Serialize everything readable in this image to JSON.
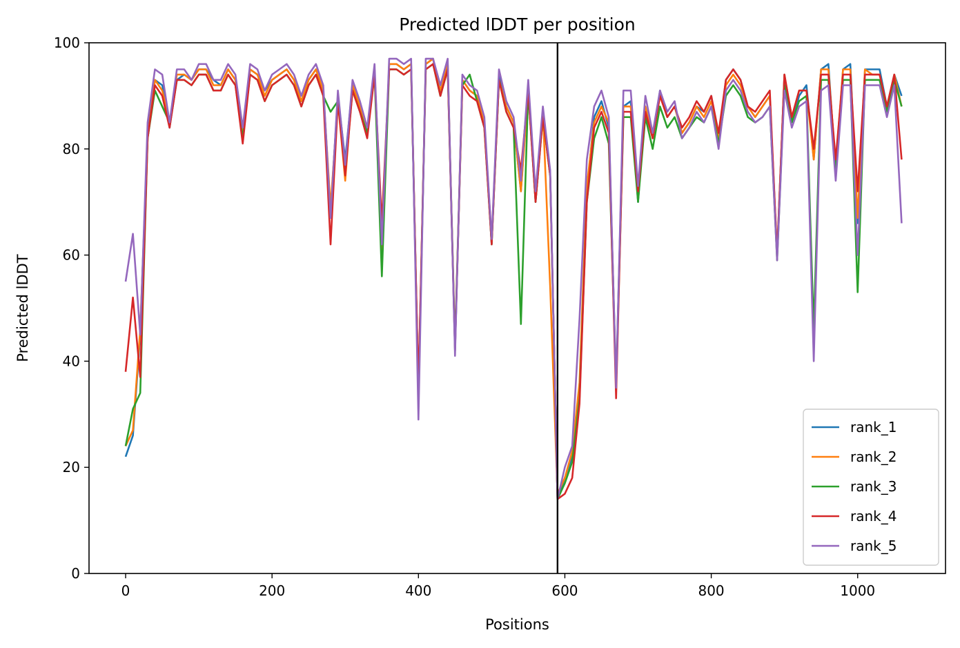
{
  "chart_data": {
    "type": "line",
    "title": "Predicted lDDT per position",
    "xlabel": "Positions",
    "ylabel": "Predicted lDDT",
    "xlim": [
      -50,
      1120
    ],
    "ylim": [
      0,
      100
    ],
    "xticks": [
      0,
      200,
      400,
      600,
      800,
      1000
    ],
    "yticks": [
      0,
      20,
      40,
      60,
      80,
      100
    ],
    "vline": 590,
    "vline_color": "#000000",
    "grid": false,
    "legend_position": "lower-right",
    "x_start": 0,
    "x_step": 10,
    "series": [
      {
        "name": "rank_1",
        "color": "#1f77b4",
        "values": [
          22,
          26,
          45,
          83,
          93,
          92,
          84,
          93,
          94,
          93,
          95,
          95,
          93,
          92,
          95,
          93,
          82,
          95,
          94,
          91,
          93,
          94,
          95,
          93,
          89,
          93,
          95,
          91,
          68,
          90,
          78,
          92,
          88,
          83,
          95,
          60,
          96,
          96,
          95,
          96,
          33,
          96,
          97,
          90,
          96,
          42,
          93,
          91,
          90,
          85,
          62,
          94,
          88,
          85,
          72,
          92,
          70,
          87,
          75,
          14,
          18,
          22,
          35,
          72,
          86,
          89,
          84,
          36,
          88,
          89,
          70,
          88,
          82,
          91,
          86,
          88,
          83,
          85,
          88,
          87,
          90,
          82,
          93,
          95,
          93,
          88,
          86,
          88,
          90,
          60,
          94,
          85,
          90,
          92,
          78,
          95,
          96,
          76,
          95,
          96,
          66,
          95,
          95,
          95,
          88,
          94,
          90
        ]
      },
      {
        "name": "rank_2",
        "color": "#ff7f0e",
        "values": [
          24,
          27,
          46,
          82,
          93,
          91,
          85,
          94,
          94,
          93,
          95,
          95,
          92,
          92,
          95,
          93,
          83,
          95,
          94,
          90,
          93,
          94,
          95,
          93,
          89,
          93,
          95,
          91,
          69,
          89,
          74,
          92,
          88,
          83,
          95,
          61,
          96,
          96,
          95,
          96,
          34,
          96,
          97,
          91,
          96,
          43,
          93,
          91,
          90,
          85,
          63,
          93,
          88,
          85,
          72,
          91,
          71,
          87,
          54,
          15,
          18,
          23,
          36,
          73,
          85,
          88,
          85,
          35,
          88,
          88,
          71,
          88,
          82,
          90,
          86,
          88,
          83,
          85,
          88,
          86,
          89,
          82,
          92,
          94,
          92,
          88,
          86,
          88,
          90,
          60,
          94,
          86,
          91,
          91,
          78,
          95,
          95,
          77,
          95,
          95,
          67,
          95,
          94,
          94,
          88,
          94,
          88
        ]
      },
      {
        "name": "rank_3",
        "color": "#2ca02c",
        "values": [
          24,
          31,
          34,
          82,
          91,
          88,
          85,
          93,
          93,
          92,
          94,
          94,
          91,
          91,
          94,
          92,
          82,
          94,
          93,
          89,
          92,
          93,
          94,
          92,
          88,
          92,
          94,
          90,
          87,
          89,
          76,
          91,
          87,
          83,
          94,
          56,
          95,
          95,
          94,
          95,
          34,
          95,
          96,
          90,
          95,
          43,
          92,
          94,
          89,
          84,
          62,
          93,
          87,
          84,
          47,
          91,
          70,
          86,
          75,
          14,
          17,
          21,
          33,
          70,
          82,
          86,
          81,
          35,
          86,
          86,
          70,
          86,
          80,
          88,
          84,
          86,
          82,
          84,
          86,
          85,
          88,
          81,
          90,
          92,
          90,
          86,
          85,
          86,
          88,
          59,
          92,
          85,
          89,
          90,
          46,
          93,
          93,
          76,
          93,
          93,
          53,
          93,
          93,
          93,
          87,
          93,
          88
        ]
      },
      {
        "name": "rank_4",
        "color": "#d62728",
        "values": [
          38,
          52,
          37,
          82,
          92,
          90,
          84,
          93,
          93,
          92,
          94,
          94,
          91,
          91,
          94,
          92,
          81,
          94,
          93,
          89,
          92,
          93,
          94,
          92,
          88,
          92,
          94,
          90,
          62,
          89,
          75,
          91,
          87,
          82,
          94,
          66,
          95,
          95,
          94,
          95,
          35,
          95,
          96,
          90,
          95,
          42,
          92,
          90,
          89,
          84,
          62,
          93,
          87,
          84,
          76,
          91,
          70,
          86,
          75,
          14,
          15,
          18,
          32,
          70,
          84,
          87,
          83,
          33,
          87,
          87,
          72,
          87,
          82,
          90,
          86,
          88,
          84,
          86,
          89,
          87,
          90,
          83,
          93,
          95,
          93,
          88,
          87,
          89,
          91,
          60,
          94,
          86,
          91,
          91,
          80,
          94,
          94,
          78,
          94,
          94,
          72,
          94,
          94,
          94,
          88,
          94,
          78
        ]
      },
      {
        "name": "rank_5",
        "color": "#9467bd",
        "values": [
          55,
          64,
          45,
          85,
          95,
          94,
          85,
          95,
          95,
          93,
          96,
          96,
          93,
          93,
          96,
          94,
          84,
          96,
          95,
          91,
          94,
          95,
          96,
          94,
          90,
          94,
          96,
          92,
          67,
          91,
          77,
          93,
          89,
          84,
          96,
          62,
          97,
          97,
          96,
          97,
          29,
          97,
          97,
          92,
          97,
          41,
          94,
          92,
          91,
          86,
          63,
          95,
          89,
          86,
          74,
          93,
          72,
          88,
          76,
          14,
          20,
          24,
          48,
          78,
          88,
          91,
          86,
          35,
          91,
          91,
          73,
          90,
          83,
          91,
          87,
          89,
          82,
          84,
          87,
          85,
          88,
          80,
          91,
          93,
          91,
          87,
          85,
          86,
          88,
          59,
          91,
          84,
          88,
          89,
          40,
          91,
          92,
          74,
          92,
          92,
          60,
          92,
          92,
          92,
          86,
          92,
          66
        ]
      }
    ]
  }
}
